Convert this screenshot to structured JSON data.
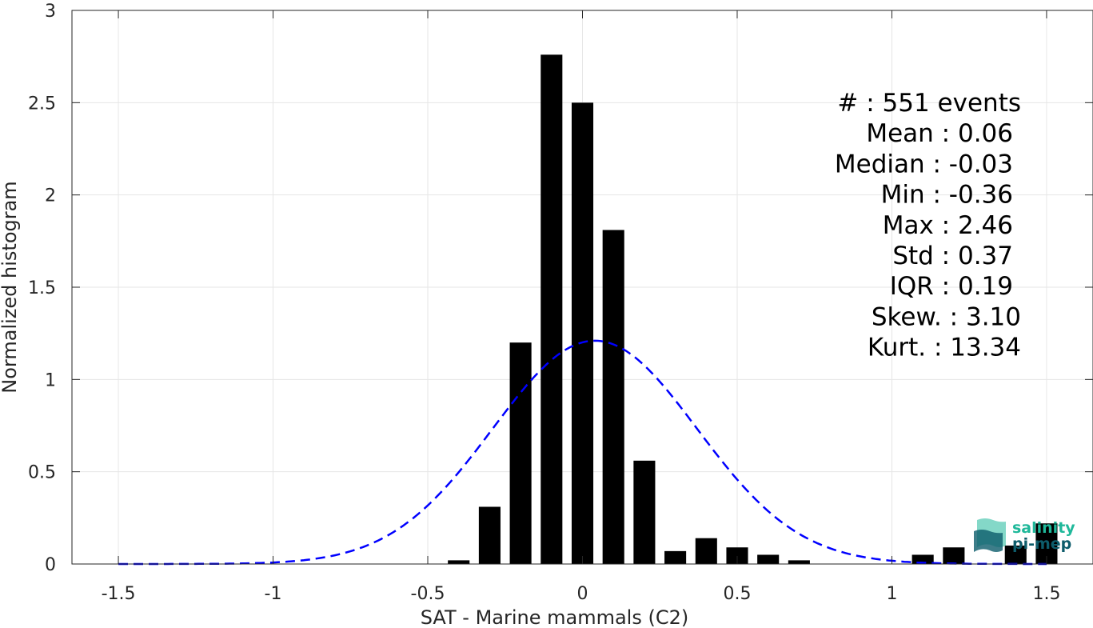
{
  "chart_data": {
    "type": "bar",
    "xlabel": "SAT - Marine mammals (C2)",
    "ylabel": "Normalized histogram",
    "xlim": [
      -1.65,
      1.65
    ],
    "ylim": [
      0,
      3
    ],
    "xticks": [
      -1.5,
      -1,
      -0.5,
      0,
      0.5,
      1,
      1.5
    ],
    "xtick_labels": [
      "-1.5",
      "-1",
      "-0.5",
      "0",
      "0.5",
      "1",
      "1.5"
    ],
    "yticks": [
      0,
      0.5,
      1,
      1.5,
      2,
      2.5,
      3
    ],
    "ytick_labels": [
      "0",
      "0.5",
      "1",
      "1.5",
      "2",
      "2.5",
      "3"
    ],
    "grid": true,
    "bar_color": "#000000",
    "bar_width": 0.07,
    "bars": [
      {
        "x": -0.4,
        "y": 0.02
      },
      {
        "x": -0.3,
        "y": 0.31
      },
      {
        "x": -0.2,
        "y": 1.2
      },
      {
        "x": -0.1,
        "y": 2.76
      },
      {
        "x": 0.0,
        "y": 2.5
      },
      {
        "x": 0.1,
        "y": 1.81
      },
      {
        "x": 0.2,
        "y": 0.56
      },
      {
        "x": 0.3,
        "y": 0.07
      },
      {
        "x": 0.4,
        "y": 0.14
      },
      {
        "x": 0.5,
        "y": 0.09
      },
      {
        "x": 0.6,
        "y": 0.05
      },
      {
        "x": 0.7,
        "y": 0.02
      },
      {
        "x": 1.1,
        "y": 0.05
      },
      {
        "x": 1.2,
        "y": 0.09
      },
      {
        "x": 1.4,
        "y": 0.1
      },
      {
        "x": 1.5,
        "y": 0.22
      }
    ],
    "fit": {
      "type": "gaussian",
      "style": "dashed",
      "color": "#0000ff",
      "mean": 0.04,
      "std": 0.33,
      "peak": 1.21,
      "x_range": [
        -1.5,
        1.5
      ]
    },
    "stats": [
      {
        "label": "#  : 551 events"
      },
      {
        "label": "Mean : 0.06"
      },
      {
        "label": "Median : -0.03"
      },
      {
        "label": "Min : -0.36"
      },
      {
        "label": "Max : 2.46"
      },
      {
        "label": "Std : 0.37"
      },
      {
        "label": "IQR : 0.19"
      },
      {
        "label": "Skew. : 3.10"
      },
      {
        "label": "Kurt. : 13.34"
      }
    ]
  },
  "logo": {
    "line1": "salinity",
    "line2": "pi-mep",
    "color1": "#1fb89a",
    "color2": "#0d5c6b"
  }
}
